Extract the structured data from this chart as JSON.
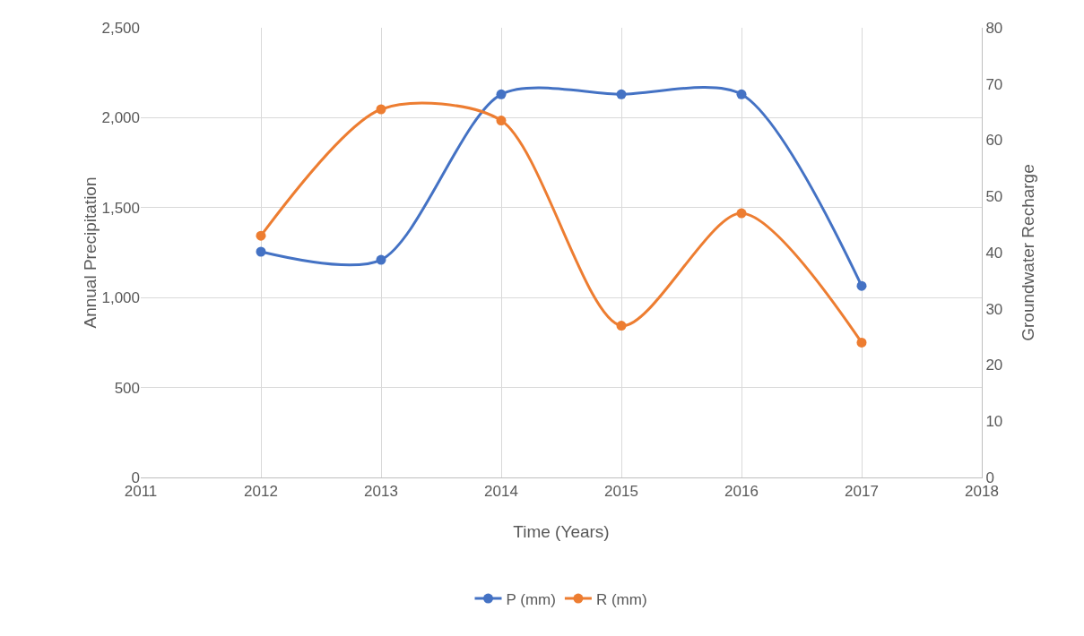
{
  "chart_data": {
    "type": "line",
    "xlabel": "Time (Years)",
    "ylabel": "Annual Precipitation",
    "y2label": "Groundwater Recharge",
    "x": [
      2012,
      2013,
      2014,
      2015,
      2016,
      2017
    ],
    "series": [
      {
        "name": "P (mm)",
        "color": "#4472c4",
        "values": [
          1255,
          1210,
          2130,
          2130,
          2130,
          1065
        ]
      },
      {
        "name": "R (mm)",
        "color": "#ed7d31",
        "axis": "y2",
        "values": [
          43,
          65.5,
          63.5,
          27,
          47,
          24
        ]
      }
    ],
    "xlim": [
      2011,
      2018
    ],
    "xticks": [
      2011,
      2012,
      2013,
      2014,
      2015,
      2016,
      2017,
      2018
    ],
    "ylim": [
      0,
      2500
    ],
    "yticks": [
      0,
      500,
      {
        "value": 1000,
        "label": "1,000"
      },
      {
        "value": 1500,
        "label": "1,500"
      },
      {
        "value": 2000,
        "label": "2,000"
      },
      {
        "value": 2500,
        "label": "2,500"
      }
    ],
    "y2lim": [
      0,
      80
    ],
    "y2ticks": [
      0,
      10,
      20,
      30,
      40,
      50,
      60,
      70,
      80
    ],
    "grid": true,
    "legend": "bottom",
    "marker": "circle",
    "line_style": "solid"
  }
}
